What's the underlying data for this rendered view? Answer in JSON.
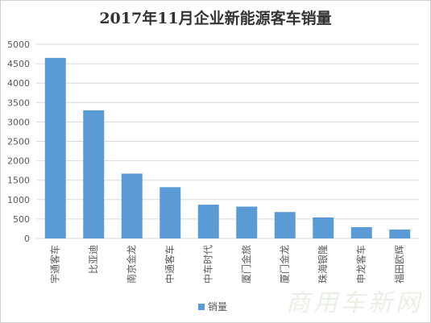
{
  "chart_data": {
    "type": "bar",
    "title": "2017年11月企业新能源客车销量",
    "categories": [
      "宇通客车",
      "比亚迪",
      "南京金龙",
      "中通客车",
      "中车时代",
      "厦门金旅",
      "厦门金龙",
      "珠海银隆",
      "申龙客车",
      "福田欧辉"
    ],
    "series": [
      {
        "name": "销量",
        "values": [
          4650,
          3300,
          1670,
          1320,
          870,
          820,
          680,
          540,
          290,
          230
        ]
      }
    ],
    "ylim": [
      0,
      5000
    ],
    "yticks": [
      0,
      500,
      1000,
      1500,
      2000,
      2500,
      3000,
      3500,
      4000,
      4500,
      5000
    ],
    "grid": true,
    "legend": "bottom",
    "color": "#5b9bd5"
  },
  "watermark": "商用车新网"
}
